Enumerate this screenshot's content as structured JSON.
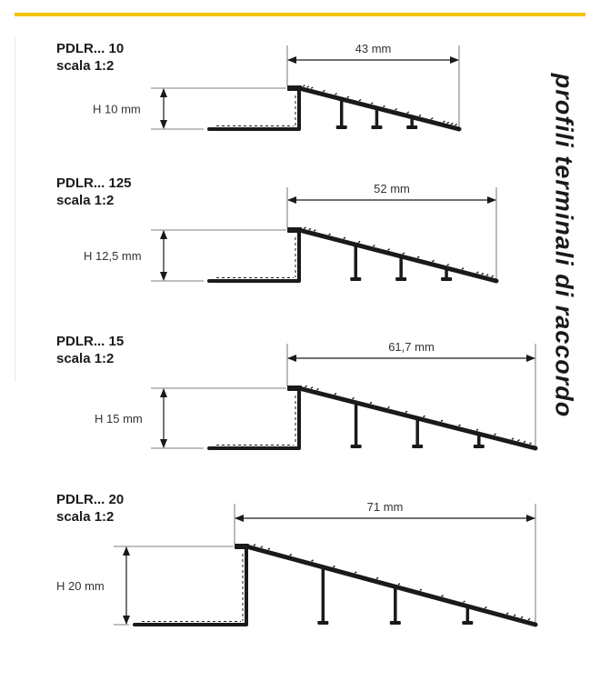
{
  "title": "profili terminali di raccordo",
  "colors": {
    "accent": "#f2c300",
    "profile": "#1a1a1a"
  },
  "profiles": [
    {
      "code": "PDLR... 10",
      "scale": "scala 1:2",
      "height_label": "H 10 mm",
      "width_label": "43 mm"
    },
    {
      "code": "PDLR... 125",
      "scale": "scala 1:2",
      "height_label": "H 12,5 mm",
      "width_label": "52 mm"
    },
    {
      "code": "PDLR... 15",
      "scale": "scala 1:2",
      "height_label": "H 15 mm",
      "width_label": "61,7 mm"
    },
    {
      "code": "PDLR... 20",
      "scale": "scala 1:2",
      "height_label": "H 20 mm",
      "width_label": "71 mm"
    }
  ]
}
